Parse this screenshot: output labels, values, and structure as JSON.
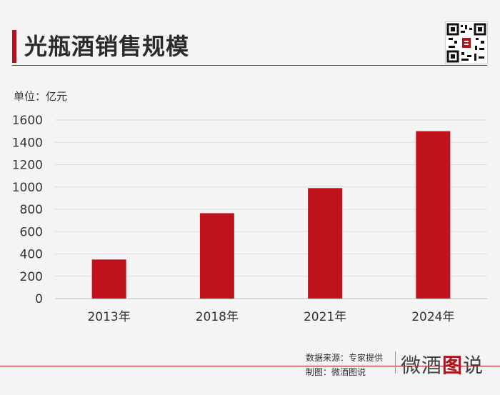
{
  "header": {
    "title": "光瓶酒销售规模"
  },
  "unit_label": "单位：亿元",
  "footer": {
    "source": "数据来源：专家提供",
    "maker": "制图：微酒图说",
    "brand_a": "微酒",
    "brand_b": "图",
    "brand_c": "说"
  },
  "colors": {
    "bar": "#c0121c",
    "accent": "#b5121b",
    "grid": "#dddddd"
  },
  "chart_data": {
    "type": "bar",
    "title": "光瓶酒销售规模",
    "ylabel": "单位：亿元",
    "categories": [
      "2013年",
      "2018年",
      "2021年",
      "2024年"
    ],
    "values": [
      350,
      765,
      990,
      1500
    ],
    "ylim": [
      0,
      1600
    ],
    "yticks": [
      0,
      200,
      400,
      600,
      800,
      1000,
      1200,
      1400,
      1600
    ],
    "grid": true
  }
}
